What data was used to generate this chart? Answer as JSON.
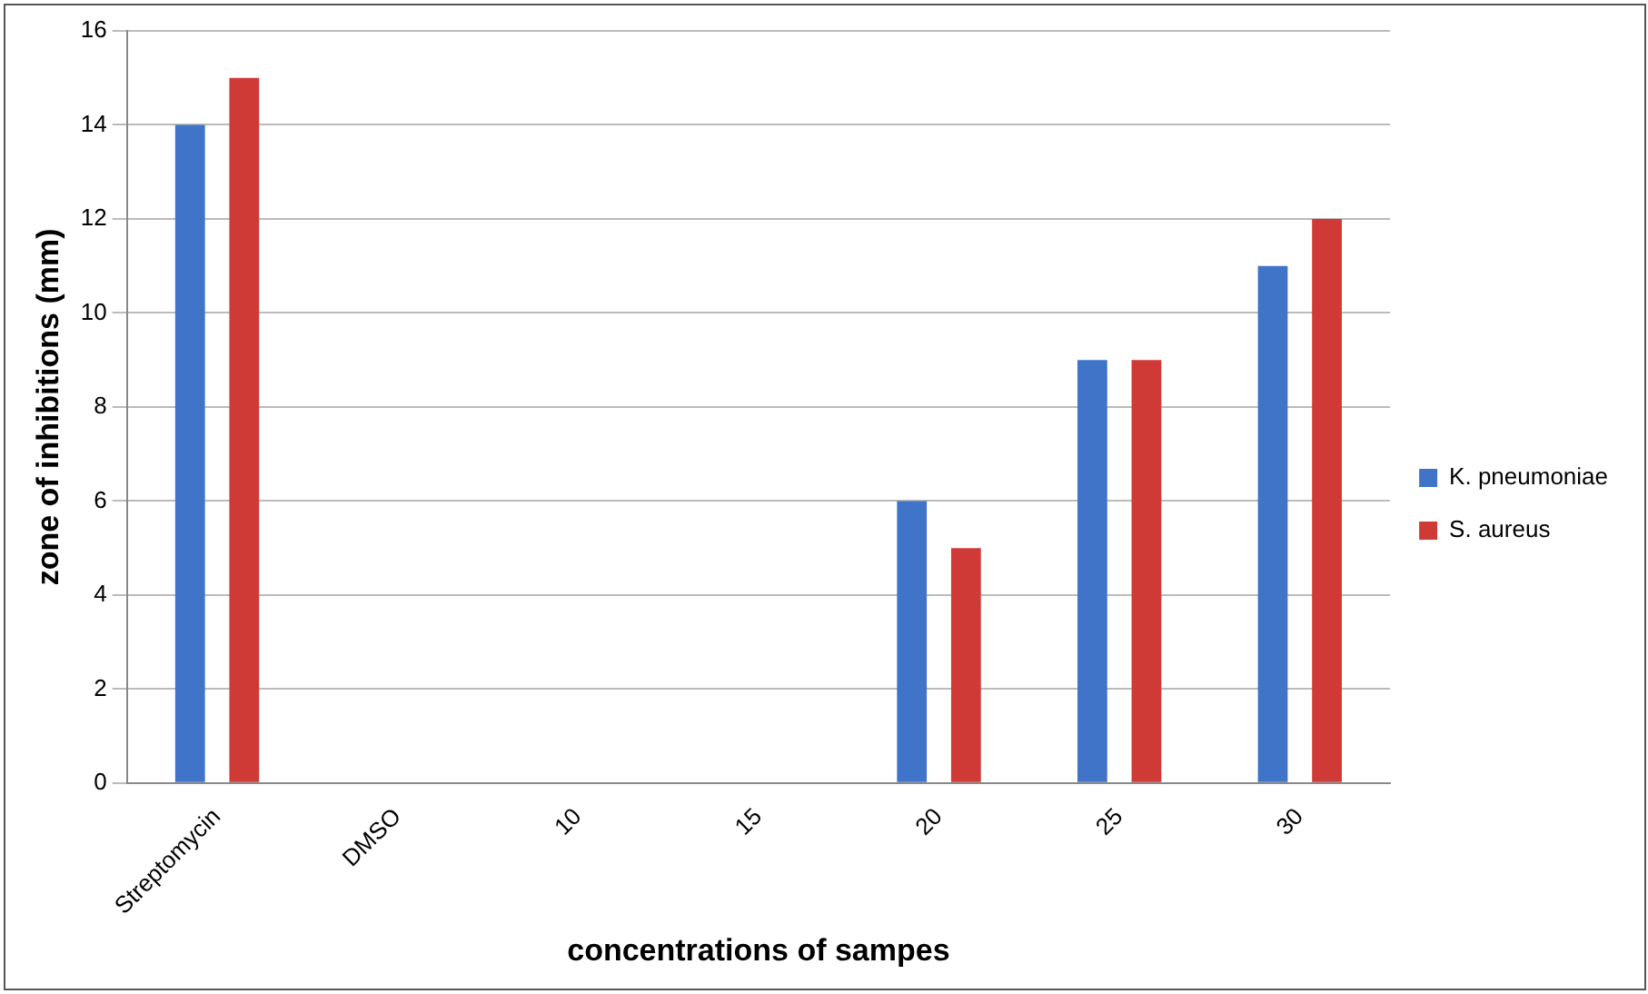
{
  "chart_data": {
    "type": "bar",
    "xlabel": "concentrations of sampes",
    "ylabel": "zone of inhibitions (mm)",
    "categories": [
      "Streptomycin",
      "DMSO",
      "10",
      "15",
      "20",
      "25",
      "30"
    ],
    "series": [
      {
        "name": "K. pneumoniae",
        "color": "#3f74c8",
        "values": [
          14,
          0,
          0,
          0,
          6,
          9,
          11
        ]
      },
      {
        "name": "S. aureus",
        "color": "#d03a36",
        "values": [
          15,
          0,
          0,
          0,
          5,
          9,
          12
        ]
      }
    ],
    "ylim": [
      0,
      16
    ],
    "yticks": [
      0,
      2,
      4,
      6,
      8,
      10,
      12,
      14,
      16
    ],
    "grid": "y",
    "legend": "right"
  }
}
